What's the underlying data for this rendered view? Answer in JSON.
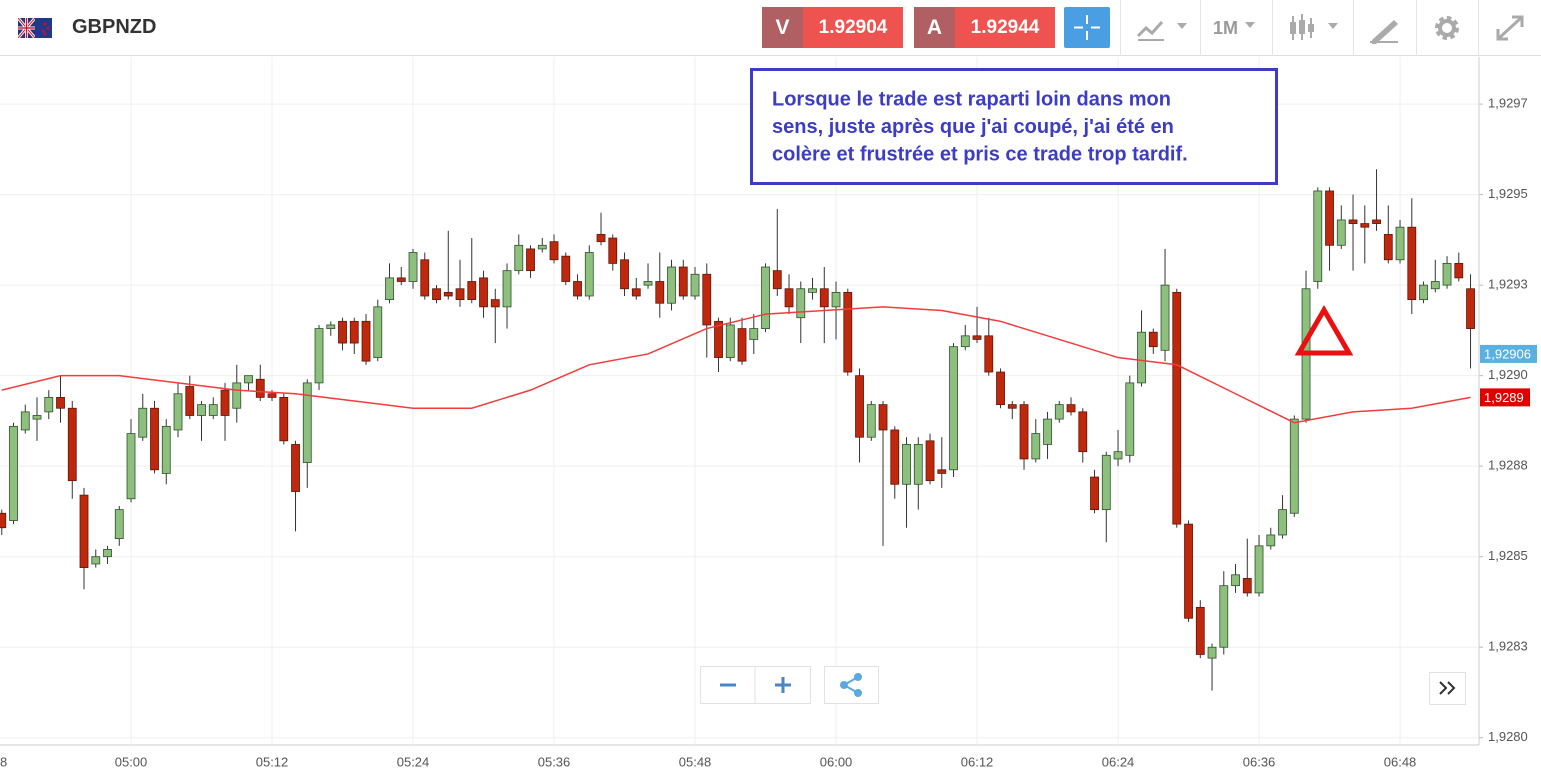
{
  "header": {
    "symbol": "GBPNZD",
    "sell": {
      "label": "V",
      "price": "1.92904"
    },
    "buy": {
      "label": "A",
      "price": "1.92944"
    },
    "timeframe": "1M"
  },
  "chart_data": {
    "type": "candlestick",
    "annotation": [
      "Lorsque le trade est raparti loin dans mon",
      "sens, juste après que j'ai coupé, j'ai été en",
      "colère et frustrée et pris ce trade trop tardif."
    ],
    "up_color": "#8dc07c",
    "down_color": "#c0280e",
    "open": [
      1.92862,
      1.9286,
      1.92885,
      1.92888,
      1.9289,
      1.92894,
      1.92891,
      1.92867,
      1.92848,
      1.9285,
      1.92855,
      1.92866,
      1.92883,
      1.92891,
      1.92873,
      1.92885,
      1.92897,
      1.92889,
      1.92889,
      1.92896,
      1.92891,
      1.92898,
      1.92899,
      1.92895,
      1.92894,
      1.92881,
      1.92876,
      1.92898,
      1.92913,
      1.92915,
      1.92915,
      1.92915,
      1.92905,
      1.92921,
      1.92927,
      1.92926,
      1.92932,
      1.92924,
      1.92923,
      1.92924,
      1.92926,
      1.92927,
      1.92921,
      1.92919,
      1.92929,
      1.92935,
      1.92935,
      1.92937,
      1.92933,
      1.92926,
      1.92922,
      1.92939,
      1.92938,
      1.92932,
      1.92924,
      1.92925,
      1.92926,
      1.9292,
      1.9293,
      1.92922,
      1.92928,
      1.92915,
      1.92905,
      1.92913,
      1.9291,
      1.92913,
      1.92929,
      1.92924,
      1.92916,
      1.92923,
      1.92924,
      1.92919,
      1.92923,
      1.929,
      1.92883,
      1.92892,
      1.92885,
      1.9287,
      1.9287,
      1.92882,
      1.92874,
      1.92874,
      1.92908,
      1.92911,
      1.92911,
      1.92901,
      1.92892,
      1.92892,
      1.92877,
      1.92881,
      1.92888,
      1.92892,
      1.9289,
      1.92872,
      1.92863,
      1.92877,
      1.92878,
      1.92898,
      1.92912,
      1.92907,
      1.92923,
      1.92859,
      1.92836,
      1.92822,
      1.92825,
      1.92842,
      1.92844,
      1.9284,
      1.92853,
      1.92856,
      1.92862,
      1.92888,
      1.92926,
      1.92951,
      1.92936,
      1.92943,
      1.92942,
      1.92943,
      1.92939,
      1.92932,
      1.92941,
      1.92921,
      1.92924,
      1.92925,
      1.92931,
      1.92924
    ],
    "high": [
      1.92863,
      1.92887,
      1.92892,
      1.92894,
      1.92896,
      1.929,
      1.92893,
      1.92869,
      1.92852,
      1.92853,
      1.92864,
      1.92888,
      1.92895,
      1.92893,
      1.92888,
      1.92898,
      1.929,
      1.92893,
      1.92894,
      1.92898,
      1.92903,
      1.929,
      1.92903,
      1.92896,
      1.92895,
      1.92882,
      1.92899,
      1.92914,
      1.92915,
      1.92916,
      1.92916,
      1.92917,
      1.92921,
      1.92931,
      1.9293,
      1.92935,
      1.92934,
      1.92925,
      1.9294,
      1.92932,
      1.92938,
      1.92929,
      1.92924,
      1.92931,
      1.92939,
      1.92936,
      1.92938,
      1.92939,
      1.92934,
      1.92928,
      1.92936,
      1.92945,
      1.92939,
      1.92934,
      1.92927,
      1.92931,
      1.92934,
      1.92932,
      1.92932,
      1.9293,
      1.92931,
      1.92916,
      1.92916,
      1.92916,
      1.92917,
      1.92931,
      1.92946,
      1.92928,
      1.92926,
      1.92927,
      1.9293,
      1.92926,
      1.92924,
      1.92902,
      1.92893,
      1.92893,
      1.92886,
      1.92883,
      1.92883,
      1.92884,
      1.92883,
      1.92909,
      1.92914,
      1.92919,
      1.92916,
      1.92902,
      1.92893,
      1.92893,
      1.92888,
      1.9289,
      1.92893,
      1.92894,
      1.92891,
      1.92874,
      1.92879,
      1.92885,
      1.929,
      1.92918,
      1.92913,
      1.92935,
      1.92924,
      1.9286,
      1.92838,
      1.92826,
      1.92846,
      1.92848,
      1.92855,
      1.92856,
      1.92858,
      1.92867,
      1.92889,
      1.92929,
      1.92952,
      1.92952,
      1.92947,
      1.9295,
      1.92947,
      1.92957,
      1.92947,
      1.92943,
      1.92949,
      1.92926,
      1.92932,
      1.92933,
      1.92934,
      1.92928
    ],
    "low": [
      1.92856,
      1.92859,
      1.92884,
      1.92882,
      1.92888,
      1.92887,
      1.92866,
      1.92841,
      1.92847,
      1.92848,
      1.92853,
      1.92865,
      1.92882,
      1.92873,
      1.9287,
      1.92883,
      1.92888,
      1.92882,
      1.92888,
      1.92882,
      1.92887,
      1.92896,
      1.92893,
      1.92893,
      1.92881,
      1.92857,
      1.92869,
      1.92896,
      1.92911,
      1.92907,
      1.92906,
      1.92903,
      1.92904,
      1.9292,
      1.92925,
      1.92924,
      1.92921,
      1.9292,
      1.92921,
      1.92919,
      1.9292,
      1.92916,
      1.92909,
      1.92913,
      1.92928,
      1.92927,
      1.92934,
      1.92931,
      1.92925,
      1.92921,
      1.92921,
      1.92936,
      1.92929,
      1.92922,
      1.92921,
      1.92924,
      1.92916,
      1.92918,
      1.92921,
      1.92921,
      1.92905,
      1.92901,
      1.92904,
      1.92903,
      1.92906,
      1.92912,
      1.92922,
      1.92917,
      1.92909,
      1.92921,
      1.92909,
      1.9291,
      1.929,
      1.92876,
      1.92882,
      1.92853,
      1.92866,
      1.92858,
      1.92863,
      1.9287,
      1.92869,
      1.92872,
      1.92907,
      1.92909,
      1.929,
      1.92891,
      1.92888,
      1.92874,
      1.92876,
      1.92877,
      1.92887,
      1.92889,
      1.92876,
      1.92862,
      1.92854,
      1.92875,
      1.92876,
      1.92897,
      1.92906,
      1.92904,
      1.92858,
      1.92832,
      1.92822,
      1.92813,
      1.92823,
      1.9284,
      1.92839,
      1.92839,
      1.92852,
      1.92855,
      1.92861,
      1.92887,
      1.92924,
      1.92929,
      1.92935,
      1.92929,
      1.92931,
      1.9294,
      1.92931,
      1.92931,
      1.92917,
      1.9292,
      1.92923,
      1.92924,
      1.92926,
      1.92902
    ],
    "close": [
      1.92858,
      1.92886,
      1.9289,
      1.92889,
      1.92894,
      1.92891,
      1.92871,
      1.92847,
      1.9285,
      1.92852,
      1.92863,
      1.92884,
      1.92891,
      1.92874,
      1.92886,
      1.92895,
      1.92889,
      1.92892,
      1.92892,
      1.92889,
      1.92898,
      1.929,
      1.92894,
      1.92894,
      1.92882,
      1.92868,
      1.92898,
      1.92913,
      1.92914,
      1.92909,
      1.92909,
      1.92904,
      1.92919,
      1.92927,
      1.92926,
      1.92934,
      1.92922,
      1.92921,
      1.92922,
      1.92921,
      1.92921,
      1.92919,
      1.92919,
      1.92929,
      1.92936,
      1.92929,
      1.92936,
      1.92932,
      1.92926,
      1.92922,
      1.92934,
      1.92937,
      1.92931,
      1.92924,
      1.92922,
      1.92926,
      1.9292,
      1.9293,
      1.92922,
      1.92928,
      1.92914,
      1.92905,
      1.92914,
      1.92904,
      1.92913,
      1.9293,
      1.92924,
      1.92919,
      1.92924,
      1.92924,
      1.92919,
      1.92923,
      1.92901,
      1.92883,
      1.92892,
      1.92885,
      1.9287,
      1.92881,
      1.92881,
      1.92871,
      1.92873,
      1.92908,
      1.92911,
      1.9291,
      1.92901,
      1.92892,
      1.92891,
      1.92877,
      1.92884,
      1.92888,
      1.92892,
      1.9289,
      1.92879,
      1.92863,
      1.92878,
      1.92879,
      1.92898,
      1.92912,
      1.92908,
      1.92925,
      1.92859,
      1.92833,
      1.92823,
      1.92825,
      1.92842,
      1.92845,
      1.9284,
      1.92853,
      1.92856,
      1.92863,
      1.92888,
      1.92924,
      1.92951,
      1.92936,
      1.92943,
      1.92942,
      1.92941,
      1.92942,
      1.92932,
      1.92941,
      1.92921,
      1.92925,
      1.92926,
      1.92931,
      1.92927,
      1.92913
    ],
    "ma": {
      "color": "#f03c3c",
      "x": [
        0,
        5,
        10,
        15,
        20,
        25,
        30,
        35,
        40,
        45,
        50,
        55,
        60,
        65,
        70,
        75,
        80,
        85,
        90,
        95,
        100,
        105,
        110,
        115,
        120,
        125
      ],
      "values": [
        1.92896,
        1.929,
        1.929,
        1.92898,
        1.92896,
        1.92895,
        1.92893,
        1.92891,
        1.92891,
        1.92896,
        1.92903,
        1.92906,
        1.92913,
        1.92917,
        1.92918,
        1.92919,
        1.92918,
        1.92915,
        1.9291,
        1.92905,
        1.92903,
        1.92895,
        1.92887,
        1.9289,
        1.92891,
        1.92894
      ],
      "value_label": "1,9289"
    },
    "current_price": {
      "value": 1.92906,
      "label": "1,92906"
    },
    "xlim": [
      -0.15,
      125.72
    ],
    "ylim": [
      1.92798,
      1.92988
    ],
    "xticks": [
      {
        "value": -1,
        "label": "8"
      },
      {
        "value": 11,
        "label": "05:00"
      },
      {
        "value": 23,
        "label": "05:12"
      },
      {
        "value": 35,
        "label": "05:24"
      },
      {
        "value": 47,
        "label": "05:36"
      },
      {
        "value": 59,
        "label": "05:48"
      },
      {
        "value": 71,
        "label": "06:00"
      },
      {
        "value": 83,
        "label": "06:12"
      },
      {
        "value": 95,
        "label": "06:24"
      },
      {
        "value": 107,
        "label": "06:36"
      },
      {
        "value": 119,
        "label": "06:48"
      }
    ],
    "yticks": [
      {
        "value": 1.92975,
        "label": "1,9297"
      },
      {
        "value": 1.9295,
        "label": "1,9295"
      },
      {
        "value": 1.92925,
        "label": "1,9293"
      },
      {
        "value": 1.929,
        "label": "1,9290"
      },
      {
        "value": 1.92875,
        "label": "1,9288"
      },
      {
        "value": 1.9285,
        "label": "1,9285"
      },
      {
        "value": 1.92825,
        "label": "1,9283"
      },
      {
        "value": 1.928,
        "label": "1,9280"
      }
    ],
    "grid": true
  }
}
